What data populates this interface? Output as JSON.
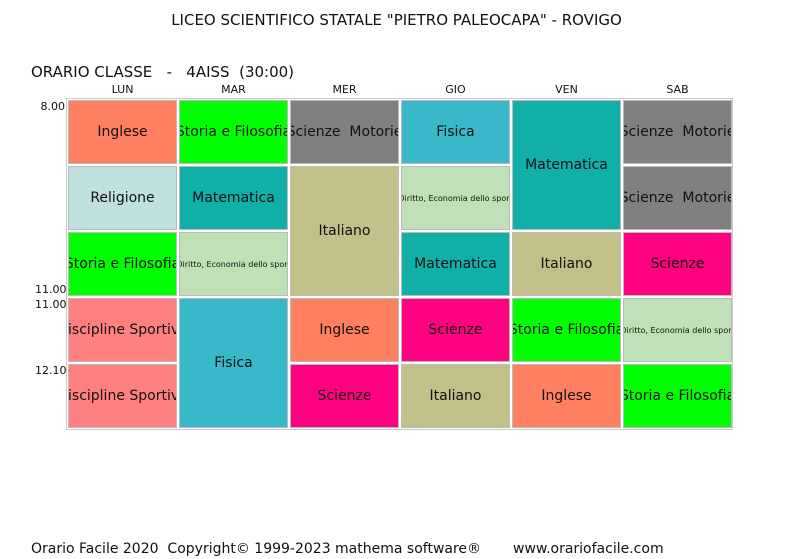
{
  "header": {
    "title": "LICEO SCIENTIFICO STATALE \"PIETRO PALEOCAPA\" - ROVIGO",
    "subtitle": "ORARIO CLASSE   -   4AISS  (30:00)"
  },
  "times": [
    {
      "label": "8.00",
      "row": 0,
      "edge": "top"
    },
    {
      "label": "11.00",
      "row": 2,
      "edge": "bottom"
    },
    {
      "label": "11.00",
      "row": 3,
      "edge": "top"
    },
    {
      "label": "12.10",
      "row": 4,
      "edge": "top"
    }
  ],
  "days": [
    {
      "name": "LUN",
      "cells": [
        {
          "subject": "Inglese",
          "color": "#ff8060",
          "rows": 1
        },
        {
          "subject": "Religione",
          "color": "#c0e0e0",
          "rows": 1
        },
        {
          "subject": "Storia e Filosofia",
          "color": "#00ff00",
          "rows": 1
        },
        {
          "subject": "Discipline Sportive",
          "color": "#ff8080",
          "rows": 1
        },
        {
          "subject": "Discipline Sportive",
          "color": "#ff8080",
          "rows": 1
        }
      ]
    },
    {
      "name": "MAR",
      "cells": [
        {
          "subject": "Storia e Filosofia",
          "color": "#00ff00",
          "rows": 1
        },
        {
          "subject": "Matematica",
          "color": "#10b0a8",
          "rows": 1
        },
        {
          "subject": "Diritto, Economia dello sport",
          "color": "#c0e0b8",
          "rows": 1
        },
        {
          "subject": "Fisica",
          "color": "#38b8c8",
          "rows": 2
        }
      ]
    },
    {
      "name": "MER",
      "cells": [
        {
          "subject": "Scienze  Motorie",
          "color": "#808080",
          "rows": 1
        },
        {
          "subject": "Italiano",
          "color": "#c0c088",
          "rows": 2
        },
        {
          "subject": "Inglese",
          "color": "#ff8060",
          "rows": 1
        },
        {
          "subject": "Scienze",
          "color": "#ff0080",
          "rows": 1
        }
      ]
    },
    {
      "name": "GIO",
      "cells": [
        {
          "subject": "Fisica",
          "color": "#38b8c8",
          "rows": 1
        },
        {
          "subject": "Diritto, Economia dello sport",
          "color": "#c0e0b8",
          "rows": 1
        },
        {
          "subject": "Matematica",
          "color": "#10b0a8",
          "rows": 1
        },
        {
          "subject": "Scienze",
          "color": "#ff0080",
          "rows": 1
        },
        {
          "subject": "Italiano",
          "color": "#c0c088",
          "rows": 1
        }
      ]
    },
    {
      "name": "VEN",
      "cells": [
        {
          "subject": "Matematica",
          "color": "#10b0a8",
          "rows": 2
        },
        {
          "subject": "Italiano",
          "color": "#c0c088",
          "rows": 1
        },
        {
          "subject": "Storia e Filosofia",
          "color": "#00ff00",
          "rows": 1
        },
        {
          "subject": "Inglese",
          "color": "#ff8060",
          "rows": 1
        }
      ]
    },
    {
      "name": "SAB",
      "cells": [
        {
          "subject": "Scienze  Motorie",
          "color": "#808080",
          "rows": 1
        },
        {
          "subject": "Scienze  Motorie",
          "color": "#808080",
          "rows": 1
        },
        {
          "subject": "Scienze",
          "color": "#ff0080",
          "rows": 1
        },
        {
          "subject": "Diritto, Economia dello sport",
          "color": "#c0e0b8",
          "rows": 1
        },
        {
          "subject": "Storia e Filosofia",
          "color": "#00ff00",
          "rows": 1
        }
      ]
    }
  ],
  "footer": {
    "copyright": "Orario Facile 2020  Copyright© 1999-2023 mathema software®",
    "website": "www.orariofacile.com"
  }
}
